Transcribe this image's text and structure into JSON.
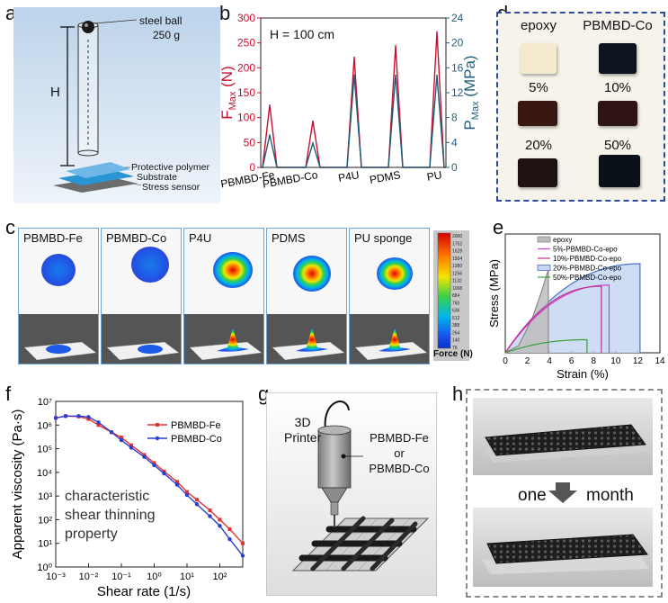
{
  "panels": {
    "a": {
      "letter": "a",
      "ball_label": "steel ball",
      "ball_mass": "250 g",
      "height_label": "H",
      "layers": [
        "Protective polymer",
        "Substrate",
        "Stress sensor"
      ]
    },
    "b": {
      "letter": "b",
      "annotation": "H = 100 cm",
      "ylabel_left": "F",
      "ylabel_left_sub": "Max",
      "ylabel_left_unit": "(N)",
      "ylabel_right": "P",
      "ylabel_right_sub": "Max",
      "ylabel_right_unit": "(MPa)"
    },
    "c": {
      "letter": "c",
      "tiles": [
        "PBMBD-Fe",
        "PBMBD-Co",
        "P4U",
        "PDMS",
        "PU sponge"
      ],
      "colorbar_ticks": [
        "2000",
        "1752",
        "1628",
        "1504",
        "1380",
        "1256",
        "1132",
        "1008",
        "884",
        "760",
        "636",
        "512",
        "388",
        "264",
        "140",
        "76"
      ],
      "colorbar_label": "Force (N)"
    },
    "d": {
      "letter": "d",
      "samples": [
        {
          "label": "epoxy",
          "color": "#f3ead0"
        },
        {
          "label": "PBMBD-Co",
          "color": "#0d1420"
        },
        {
          "label": "5%",
          "color": "#3a1712"
        },
        {
          "label": "10%",
          "color": "#2e1412"
        },
        {
          "label": "20%",
          "color": "#1d1210"
        },
        {
          "label": "50%",
          "color": "#0b1119"
        }
      ]
    },
    "e": {
      "letter": "e"
    },
    "f": {
      "letter": "f",
      "annotation": [
        "characteristic",
        "shear thinning",
        "property"
      ]
    },
    "g": {
      "letter": "g",
      "printer_label": [
        "3D",
        "Printer"
      ],
      "material_label": [
        "PBMBD-Fe",
        "or",
        "PBMBD-Co"
      ]
    },
    "h": {
      "letter": "h",
      "caption_left": "one",
      "caption_right": "month"
    }
  },
  "chart_data": [
    {
      "id": "b",
      "type": "line",
      "categories": [
        "PBMBD-Fe",
        "PBMBD-Co",
        "P4U",
        "PDMS",
        "PU"
      ],
      "ylabel": "F_Max (N)",
      "y2label": "P_Max (MPa)",
      "ylim": [
        0,
        300
      ],
      "y2lim": [
        0,
        24
      ],
      "yticks": [
        0,
        50,
        100,
        150,
        200,
        250,
        300
      ],
      "y2ticks": [
        0,
        4,
        8,
        12,
        16,
        20,
        24
      ],
      "series": [
        {
          "color": "#c8102e",
          "axis": "left",
          "values": [
            125,
            93,
            221,
            244,
            272
          ]
        },
        {
          "color": "#1f5f7a",
          "axis": "right",
          "values": [
            5.2,
            3.9,
            14.8,
            14.8,
            14.8
          ]
        }
      ],
      "grid": false
    },
    {
      "id": "e",
      "type": "area",
      "xlabel": "Strain (%)",
      "ylabel": "Stress (MPa)",
      "xlim": [
        0,
        14
      ],
      "ylim": [
        0,
        50
      ],
      "xticks": [
        0,
        2,
        4,
        6,
        8,
        10,
        12,
        14
      ],
      "series": [
        {
          "name": "epoxy",
          "color": "#8a8a8a",
          "fill": "#bdbdbd",
          "end_strain": 3.9,
          "peak": 35
        },
        {
          "name": "5%-PBMBD-Co-epo",
          "color": "#d040d0",
          "fill": "none",
          "end_strain": 9.4,
          "peak": 28.5
        },
        {
          "name": "10%-PBMBD-Co-epo",
          "color": "#c0308a",
          "fill": "none",
          "end_strain": 8.7,
          "peak": 28
        },
        {
          "name": "20%-PBMBD-Co-epo",
          "color": "#4a6fd0",
          "fill": "#c5d7f2",
          "end_strain": 12.2,
          "peak": 37.5
        },
        {
          "name": "50%-PBMBD-Co-epo",
          "color": "#3aa03a",
          "fill": "none",
          "end_strain": 7.4,
          "peak": 5.5
        }
      ],
      "legend": "top-left"
    },
    {
      "id": "f",
      "type": "line",
      "xlabel": "Shear rate (1/s)",
      "ylabel": "Apparent viscosity (Pa·s)",
      "xscale": "log",
      "yscale": "log",
      "xlim": [
        0.001,
        500
      ],
      "ylim": [
        1,
        10000000
      ],
      "xticks": [
        "10⁻³",
        "10⁻²",
        "10⁻¹",
        "10⁰",
        "10¹",
        "10²"
      ],
      "yticks": [
        "10⁰",
        "10¹",
        "10²",
        "10³",
        "10⁴",
        "10⁵",
        "10⁶",
        "10⁷"
      ],
      "series": [
        {
          "name": "PBMBD-Fe",
          "color": "#e53030",
          "x": [
            0.001,
            0.002,
            0.005,
            0.01,
            0.02,
            0.05,
            0.1,
            0.2,
            0.5,
            1,
            2,
            5,
            10,
            20,
            50,
            100,
            200,
            500
          ],
          "y": [
            2000000,
            2400000,
            2300000,
            1800000,
            1000000,
            500000,
            300000,
            140000,
            55000,
            25000,
            11000,
            4000,
            1500,
            700,
            250,
            100,
            40,
            10
          ]
        },
        {
          "name": "PBMBD-Co",
          "color": "#2a3fd0",
          "x": [
            0.001,
            0.002,
            0.005,
            0.01,
            0.02,
            0.05,
            0.1,
            0.2,
            0.5,
            1,
            2,
            5,
            10,
            20,
            50,
            100,
            200,
            500
          ],
          "y": [
            2000000,
            2400000,
            2400000,
            2200000,
            1300000,
            500000,
            230000,
            110000,
            45000,
            20000,
            9000,
            3000,
            1100,
            450,
            140,
            55,
            15,
            3
          ]
        }
      ],
      "legend": "top-right"
    }
  ]
}
